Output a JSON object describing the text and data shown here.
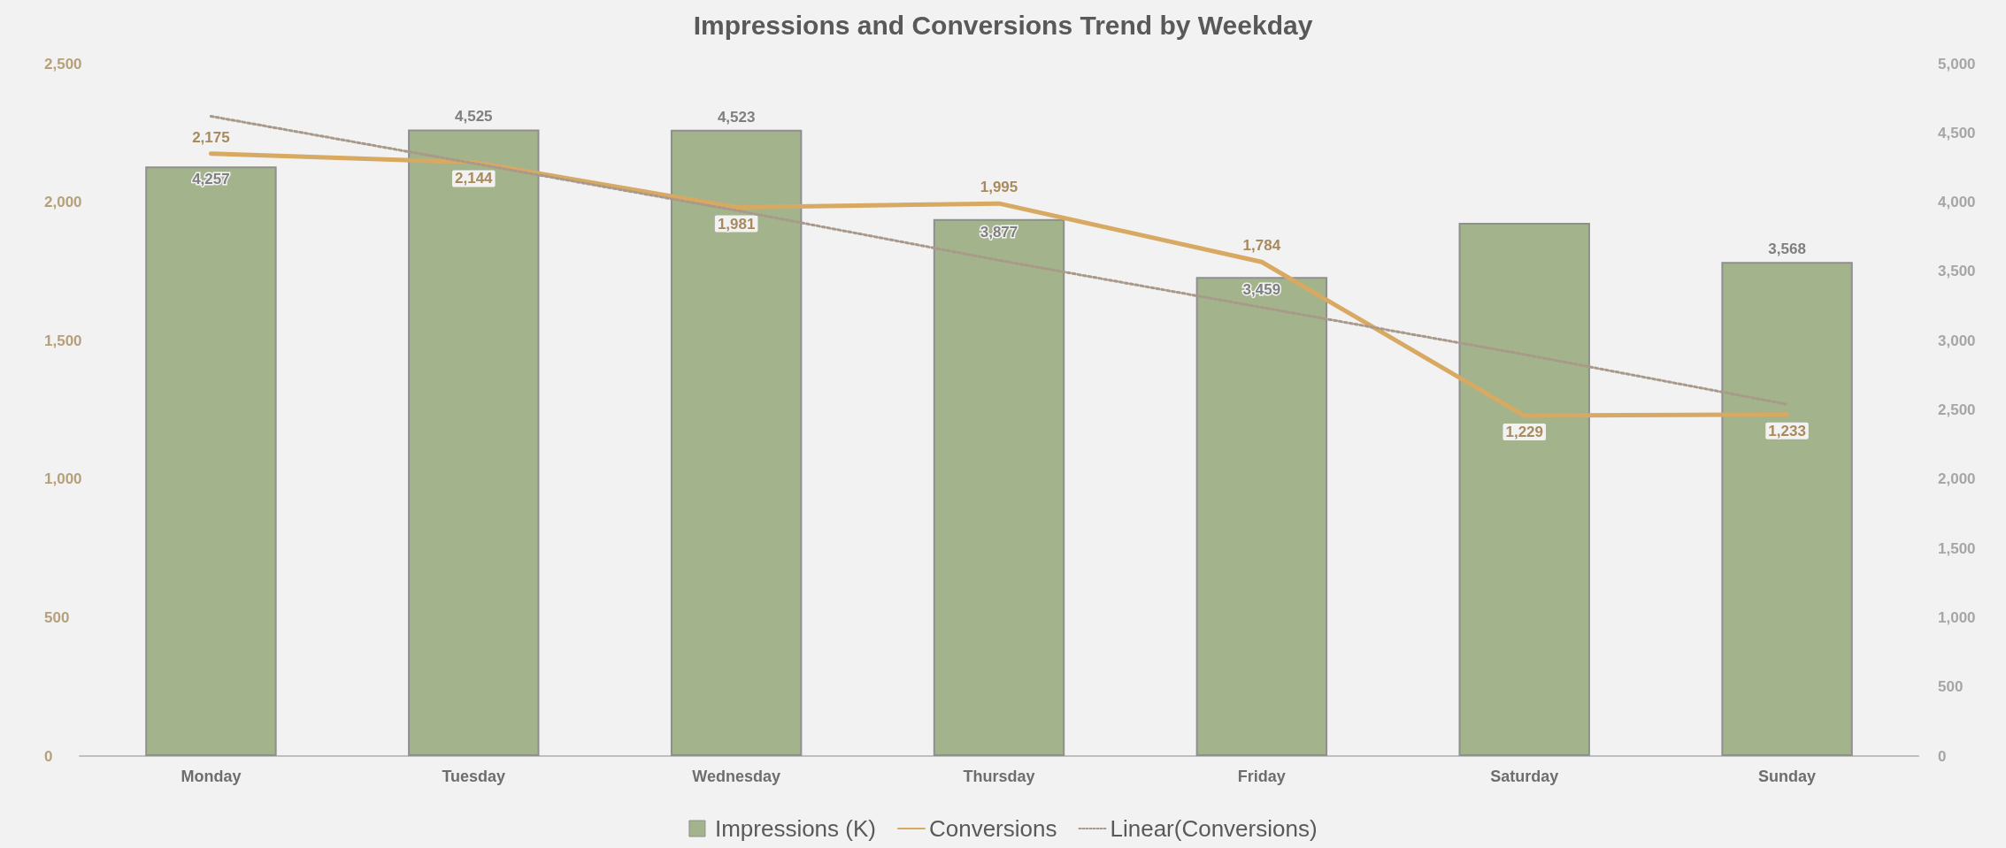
{
  "chart_data": {
    "type": "bar",
    "title": "Impressions and Conversions Trend by Weekday",
    "categories": [
      "Monday",
      "Tuesday",
      "Wednesday",
      "Thursday",
      "Friday",
      "Saturday",
      "Sunday"
    ],
    "series": [
      {
        "name": "Impressions (K)",
        "type": "bar",
        "axis": "y2",
        "color": "#a3b38c",
        "values": [
          4257,
          4525,
          4523,
          3877,
          3459,
          3850,
          3568
        ],
        "value_labels": [
          "4,257",
          "4,525",
          "4,523",
          "3,877",
          "3,459",
          null,
          "3,568"
        ]
      },
      {
        "name": "Conversions",
        "type": "line",
        "color": "#d8a962",
        "line_style": "solid",
        "values": [
          2175,
          2144,
          1981,
          1995,
          1784,
          1229,
          1233
        ],
        "value_labels": [
          "2,175",
          "2,144",
          "1,981",
          "1,995",
          "1,784",
          "1,229",
          "1,233"
        ]
      },
      {
        "name": "Linear(Conversions)",
        "type": "line",
        "color": "#a8998a",
        "line_style": "dotted",
        "x": [
          "Monday",
          "Tuesday",
          "Wednesday",
          "Thursday",
          "Friday",
          "Saturday",
          "Sunday"
        ],
        "values": [
          2310,
          2140,
          1970,
          1790,
          1620,
          1450,
          1270
        ]
      }
    ],
    "ylim": [
      0,
      2500
    ],
    "yticks": [
      0,
      500,
      {
        "value": 1000,
        "label": "1,000"
      },
      {
        "value": 1500,
        "label": "1,500"
      },
      {
        "value": 2000,
        "label": "2,000"
      },
      {
        "value": 2500,
        "label": "2,500"
      }
    ],
    "y2lim": [
      0,
      5000
    ],
    "y2ticks": [
      0,
      500,
      {
        "value": 1000,
        "label": "1,000"
      },
      {
        "value": 1500,
        "label": "1,500"
      },
      {
        "value": 2000,
        "label": "2,000"
      },
      {
        "value": 2500,
        "label": "2,500"
      },
      {
        "value": 3000,
        "label": "3,000"
      },
      {
        "value": 3500,
        "label": "3,500"
      },
      {
        "value": 4000,
        "label": "4,000"
      },
      {
        "value": 4500,
        "label": "4,500"
      },
      {
        "value": 5000,
        "label": "5,000"
      }
    ],
    "legend": "bottom",
    "marker": "none"
  }
}
